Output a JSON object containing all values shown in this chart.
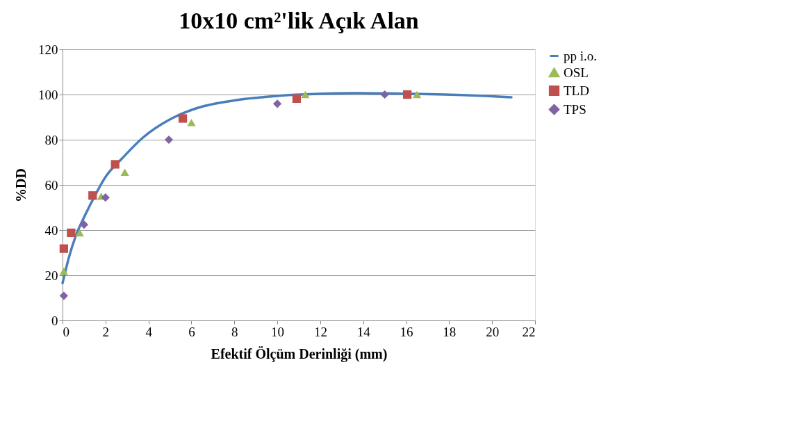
{
  "chart_data": {
    "type": "scatter",
    "title": "10x10 cm²'lik Açık Alan",
    "xlabel": "Efektif Ölçüm Derinliği (mm)",
    "ylabel": "%DD",
    "xlim": [
      0,
      22
    ],
    "xticks": [
      0,
      2,
      4,
      6,
      8,
      10,
      12,
      14,
      16,
      18,
      20,
      22
    ],
    "ylim": [
      0,
      120
    ],
    "yticks": [
      0,
      20,
      40,
      60,
      80,
      100,
      120
    ],
    "grid": "y",
    "legend": "right",
    "series": [
      {
        "name": "pp i.o.",
        "type": "line",
        "marker": "none",
        "line_style": "solid",
        "color": "#4a7ebb",
        "x": [
          0,
          0.3,
          0.6,
          1.07,
          1.55,
          2.0,
          2.8,
          3.75,
          5.0,
          6.26,
          8.15,
          10.0,
          11.9,
          13.8,
          16.3,
          18.85,
          20.9
        ],
        "values": [
          16.5,
          28,
          37,
          47,
          56,
          63.5,
          72,
          81,
          89,
          94,
          97.6,
          99.4,
          100.3,
          100.6,
          100.3,
          99.7,
          98.8
        ]
      },
      {
        "name": "OSL",
        "marker": "triangle",
        "color": "#9bbb59",
        "x": [
          0.06,
          0.8,
          1.8,
          2.9,
          6.0,
          11.3,
          16.5
        ],
        "values": [
          21.8,
          38.8,
          55,
          65.6,
          87.6,
          100,
          100
        ]
      },
      {
        "name": "TLD",
        "marker": "square",
        "color": "#c0504d",
        "x": [
          0.06,
          0.4,
          1.4,
          2.45,
          5.6,
          10.9,
          16.05
        ],
        "values": [
          31.8,
          38.8,
          55.3,
          69.1,
          89.4,
          98.2,
          100
        ]
      },
      {
        "name": "TPS",
        "marker": "diamond",
        "color": "#8064a2",
        "x": [
          0.06,
          1.0,
          2.0,
          4.95,
          10.0,
          15.0
        ],
        "values": [
          10.9,
          42.4,
          54.4,
          80,
          95.9,
          100
        ]
      }
    ]
  }
}
